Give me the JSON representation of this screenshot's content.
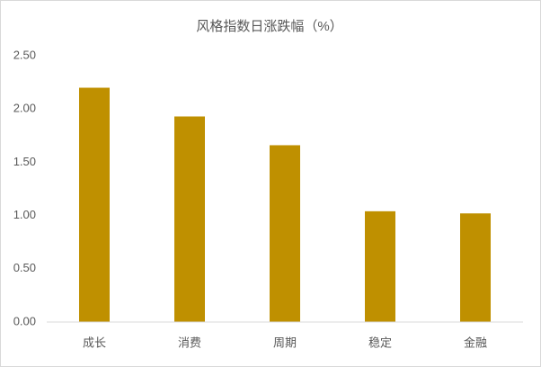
{
  "chart_data": {
    "type": "bar",
    "title": "风格指数日涨跌幅（%）",
    "categories": [
      "成长",
      "消费",
      "周期",
      "稳定",
      "金融"
    ],
    "values": [
      2.2,
      1.93,
      1.66,
      1.04,
      1.02
    ],
    "color": "#bf9000",
    "ylim": [
      0,
      2.5
    ],
    "yticks": [
      {
        "value": 0,
        "label": "0.00"
      },
      {
        "value": 0.5,
        "label": "0.50"
      },
      {
        "value": 1,
        "label": "1.00"
      },
      {
        "value": 1.5,
        "label": "1.50"
      },
      {
        "value": 2,
        "label": "2.00"
      },
      {
        "value": 2.5,
        "label": "2.50"
      }
    ],
    "grid": false
  }
}
